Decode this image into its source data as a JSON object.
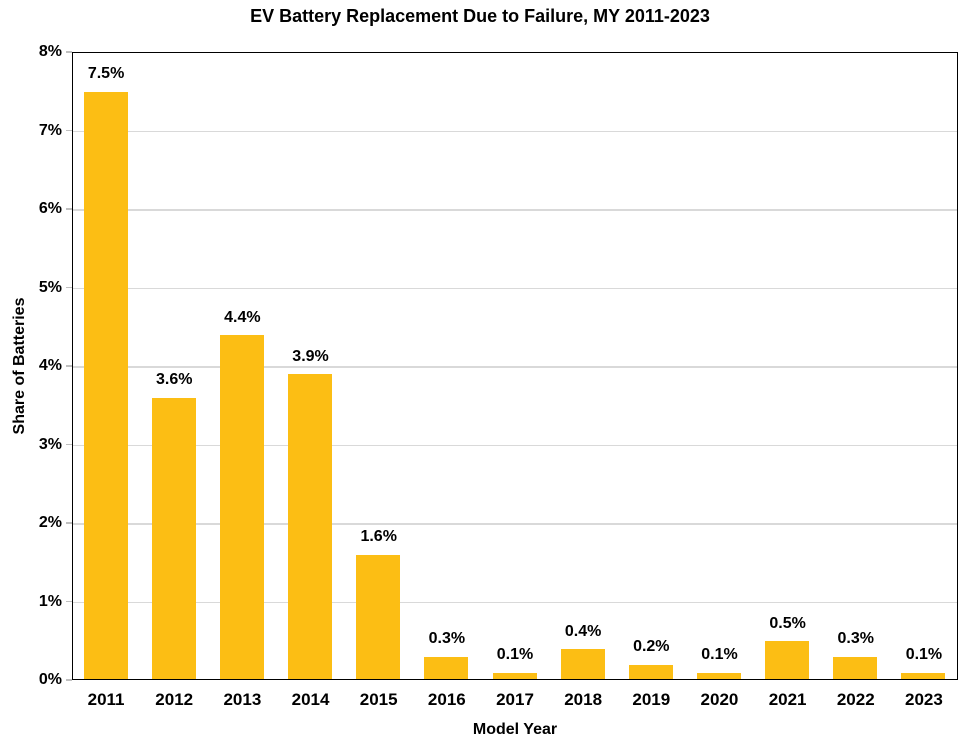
{
  "title": "EV Battery Replacement Due to Failure, MY 2011-2023",
  "chart_data": {
    "type": "bar",
    "title": "EV Battery Replacement Due to Failure, MY 2011-2023",
    "categories": [
      "2011",
      "2012",
      "2013",
      "2014",
      "2015",
      "2016",
      "2017",
      "2018",
      "2019",
      "2020",
      "2021",
      "2022",
      "2023"
    ],
    "values": [
      7.5,
      3.6,
      4.4,
      3.9,
      1.6,
      0.3,
      0.1,
      0.4,
      0.2,
      0.1,
      0.5,
      0.3,
      0.1
    ],
    "value_labels": [
      "7.5%",
      "3.6%",
      "4.4%",
      "3.9%",
      "1.6%",
      "0.3%",
      "0.1%",
      "0.4%",
      "0.2%",
      "0.1%",
      "0.5%",
      "0.3%",
      "0.1%"
    ],
    "xlabel": "Model Year",
    "ylabel": "Share of Batteries",
    "ylim": [
      0,
      8
    ],
    "ytick_step": 1,
    "ytick_labels": [
      "0%",
      "1%",
      "2%",
      "3%",
      "4%",
      "5%",
      "6%",
      "7%",
      "8%"
    ],
    "grid": true,
    "legend": "none",
    "bar_color": "#FCBE14",
    "gridline_color": "#D9D9D9",
    "axis_border_color": "#000000",
    "text_color": "#000000"
  }
}
